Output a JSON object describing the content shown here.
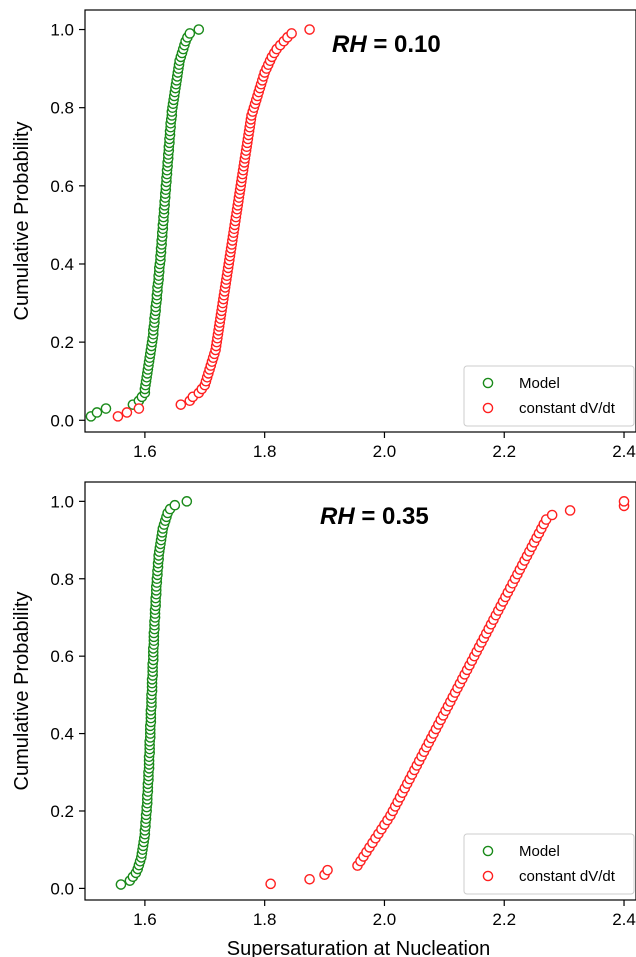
{
  "colors": {
    "model": "#1a8a1a",
    "constant": "#ff2020"
  },
  "chart_data": [
    {
      "type": "scatter",
      "id": "top",
      "annotation_italic": "RH",
      "annotation_rest": " = 0.10",
      "xlabel": "",
      "ylabel": "Cumulative Probability",
      "xlim": [
        1.5,
        2.42
      ],
      "ylim": [
        -0.03,
        1.05
      ],
      "xticks": [
        1.6,
        1.8,
        2.0,
        2.2,
        2.4
      ],
      "xtick_labels": [
        "1.6",
        "1.8",
        "2.0",
        "2.2",
        "2.4"
      ],
      "yticks": [
        0.0,
        0.2,
        0.4,
        0.6,
        0.8,
        1.0
      ],
      "ytick_labels": [
        "0.0",
        "0.2",
        "0.4",
        "0.6",
        "0.8",
        "1.0"
      ],
      "legend": {
        "placement": "lower-right",
        "entries": [
          "Model",
          "constant dV/dt"
        ]
      },
      "series": [
        {
          "name": "Model",
          "n": 100,
          "x": [
            1.51,
            1.52,
            1.535,
            1.58,
            1.59,
            1.595,
            1.6,
            1.6,
            1.601,
            1.602,
            1.603,
            1.604,
            1.605,
            1.606,
            1.607,
            1.608,
            1.609,
            1.61,
            1.611,
            1.612,
            1.613,
            1.614,
            1.614,
            1.615,
            1.616,
            1.616,
            1.617,
            1.618,
            1.618,
            1.619,
            1.62,
            1.62,
            1.621,
            1.621,
            1.622,
            1.623,
            1.623,
            1.624,
            1.624,
            1.625,
            1.626,
            1.626,
            1.627,
            1.627,
            1.628,
            1.628,
            1.629,
            1.629,
            1.63,
            1.63,
            1.631,
            1.631,
            1.632,
            1.632,
            1.633,
            1.633,
            1.634,
            1.634,
            1.635,
            1.635,
            1.636,
            1.636,
            1.637,
            1.637,
            1.638,
            1.638,
            1.639,
            1.639,
            1.64,
            1.64,
            1.641,
            1.641,
            1.642,
            1.642,
            1.643,
            1.643,
            1.644,
            1.645,
            1.645,
            1.646,
            1.647,
            1.648,
            1.649,
            1.65,
            1.651,
            1.652,
            1.653,
            1.654,
            1.655,
            1.656,
            1.657,
            1.658,
            1.66,
            1.662,
            1.664,
            1.666,
            1.668,
            1.671,
            1.675,
            1.69
          ]
        },
        {
          "name": "constant dV/dt",
          "n": 100,
          "x": [
            1.555,
            1.57,
            1.59,
            1.66,
            1.675,
            1.68,
            1.69,
            1.695,
            1.7,
            1.702,
            1.704,
            1.706,
            1.708,
            1.71,
            1.712,
            1.714,
            1.716,
            1.718,
            1.719,
            1.72,
            1.721,
            1.722,
            1.723,
            1.724,
            1.725,
            1.726,
            1.727,
            1.728,
            1.729,
            1.73,
            1.731,
            1.732,
            1.733,
            1.734,
            1.735,
            1.736,
            1.737,
            1.738,
            1.739,
            1.74,
            1.741,
            1.742,
            1.743,
            1.744,
            1.745,
            1.746,
            1.747,
            1.748,
            1.749,
            1.75,
            1.751,
            1.752,
            1.753,
            1.754,
            1.755,
            1.756,
            1.757,
            1.758,
            1.759,
            1.76,
            1.761,
            1.762,
            1.763,
            1.764,
            1.765,
            1.766,
            1.767,
            1.768,
            1.769,
            1.77,
            1.771,
            1.772,
            1.773,
            1.774,
            1.775,
            1.776,
            1.777,
            1.778,
            1.78,
            1.782,
            1.784,
            1.786,
            1.788,
            1.79,
            1.792,
            1.794,
            1.796,
            1.798,
            1.8,
            1.803,
            1.806,
            1.809,
            1.812,
            1.816,
            1.82,
            1.826,
            1.832,
            1.838,
            1.845,
            1.875
          ]
        }
      ]
    },
    {
      "type": "scatter",
      "id": "bottom",
      "annotation_italic": "RH",
      "annotation_rest": " = 0.35",
      "xlabel": "Supersaturation at Nucleation",
      "ylabel": "Cumulative Probability",
      "xlim": [
        1.5,
        2.42
      ],
      "ylim": [
        -0.03,
        1.05
      ],
      "xticks": [
        1.6,
        1.8,
        2.0,
        2.2,
        2.4
      ],
      "xtick_labels": [
        "1.6",
        "1.8",
        "2.0",
        "2.2",
        "2.4"
      ],
      "yticks": [
        0.0,
        0.2,
        0.4,
        0.6,
        0.8,
        1.0
      ],
      "ytick_labels": [
        "0.0",
        "0.2",
        "0.4",
        "0.6",
        "0.8",
        "1.0"
      ],
      "legend": {
        "placement": "lower-right",
        "entries": [
          "Model",
          "constant dV/dt"
        ]
      },
      "series": [
        {
          "name": "Model",
          "n": 100,
          "x": [
            1.56,
            1.575,
            1.58,
            1.585,
            1.588,
            1.59,
            1.592,
            1.594,
            1.595,
            1.596,
            1.597,
            1.598,
            1.599,
            1.6,
            1.6,
            1.601,
            1.601,
            1.602,
            1.602,
            1.603,
            1.603,
            1.604,
            1.604,
            1.604,
            1.605,
            1.605,
            1.605,
            1.606,
            1.606,
            1.606,
            1.607,
            1.607,
            1.607,
            1.607,
            1.608,
            1.608,
            1.608,
            1.608,
            1.609,
            1.609,
            1.609,
            1.609,
            1.61,
            1.61,
            1.61,
            1.61,
            1.611,
            1.611,
            1.611,
            1.611,
            1.612,
            1.612,
            1.612,
            1.612,
            1.613,
            1.613,
            1.613,
            1.613,
            1.614,
            1.614,
            1.614,
            1.614,
            1.615,
            1.615,
            1.615,
            1.615,
            1.616,
            1.616,
            1.616,
            1.617,
            1.617,
            1.617,
            1.618,
            1.618,
            1.618,
            1.619,
            1.619,
            1.619,
            1.62,
            1.62,
            1.621,
            1.621,
            1.622,
            1.622,
            1.623,
            1.623,
            1.624,
            1.625,
            1.626,
            1.627,
            1.628,
            1.629,
            1.63,
            1.632,
            1.634,
            1.636,
            1.638,
            1.642,
            1.65,
            1.67
          ]
        },
        {
          "name": "constant dV/dt",
          "n": 85,
          "x": [
            1.81,
            1.875,
            1.9,
            1.905,
            1.955,
            1.96,
            1.965,
            1.97,
            1.975,
            1.98,
            1.985,
            1.99,
            1.995,
            2.0,
            2.005,
            2.01,
            2.014,
            2.018,
            2.022,
            2.026,
            2.03,
            2.034,
            2.038,
            2.042,
            2.046,
            2.05,
            2.054,
            2.058,
            2.062,
            2.066,
            2.07,
            2.074,
            2.078,
            2.082,
            2.086,
            2.09,
            2.094,
            2.098,
            2.102,
            2.106,
            2.11,
            2.114,
            2.118,
            2.122,
            2.126,
            2.13,
            2.134,
            2.138,
            2.142,
            2.146,
            2.15,
            2.154,
            2.158,
            2.162,
            2.166,
            2.17,
            2.174,
            2.178,
            2.182,
            2.186,
            2.19,
            2.194,
            2.198,
            2.202,
            2.206,
            2.21,
            2.214,
            2.218,
            2.222,
            2.226,
            2.23,
            2.234,
            2.238,
            2.242,
            2.246,
            2.25,
            2.254,
            2.258,
            2.262,
            2.266,
            2.27,
            2.28,
            2.31,
            2.4,
            2.4
          ]
        }
      ]
    }
  ]
}
